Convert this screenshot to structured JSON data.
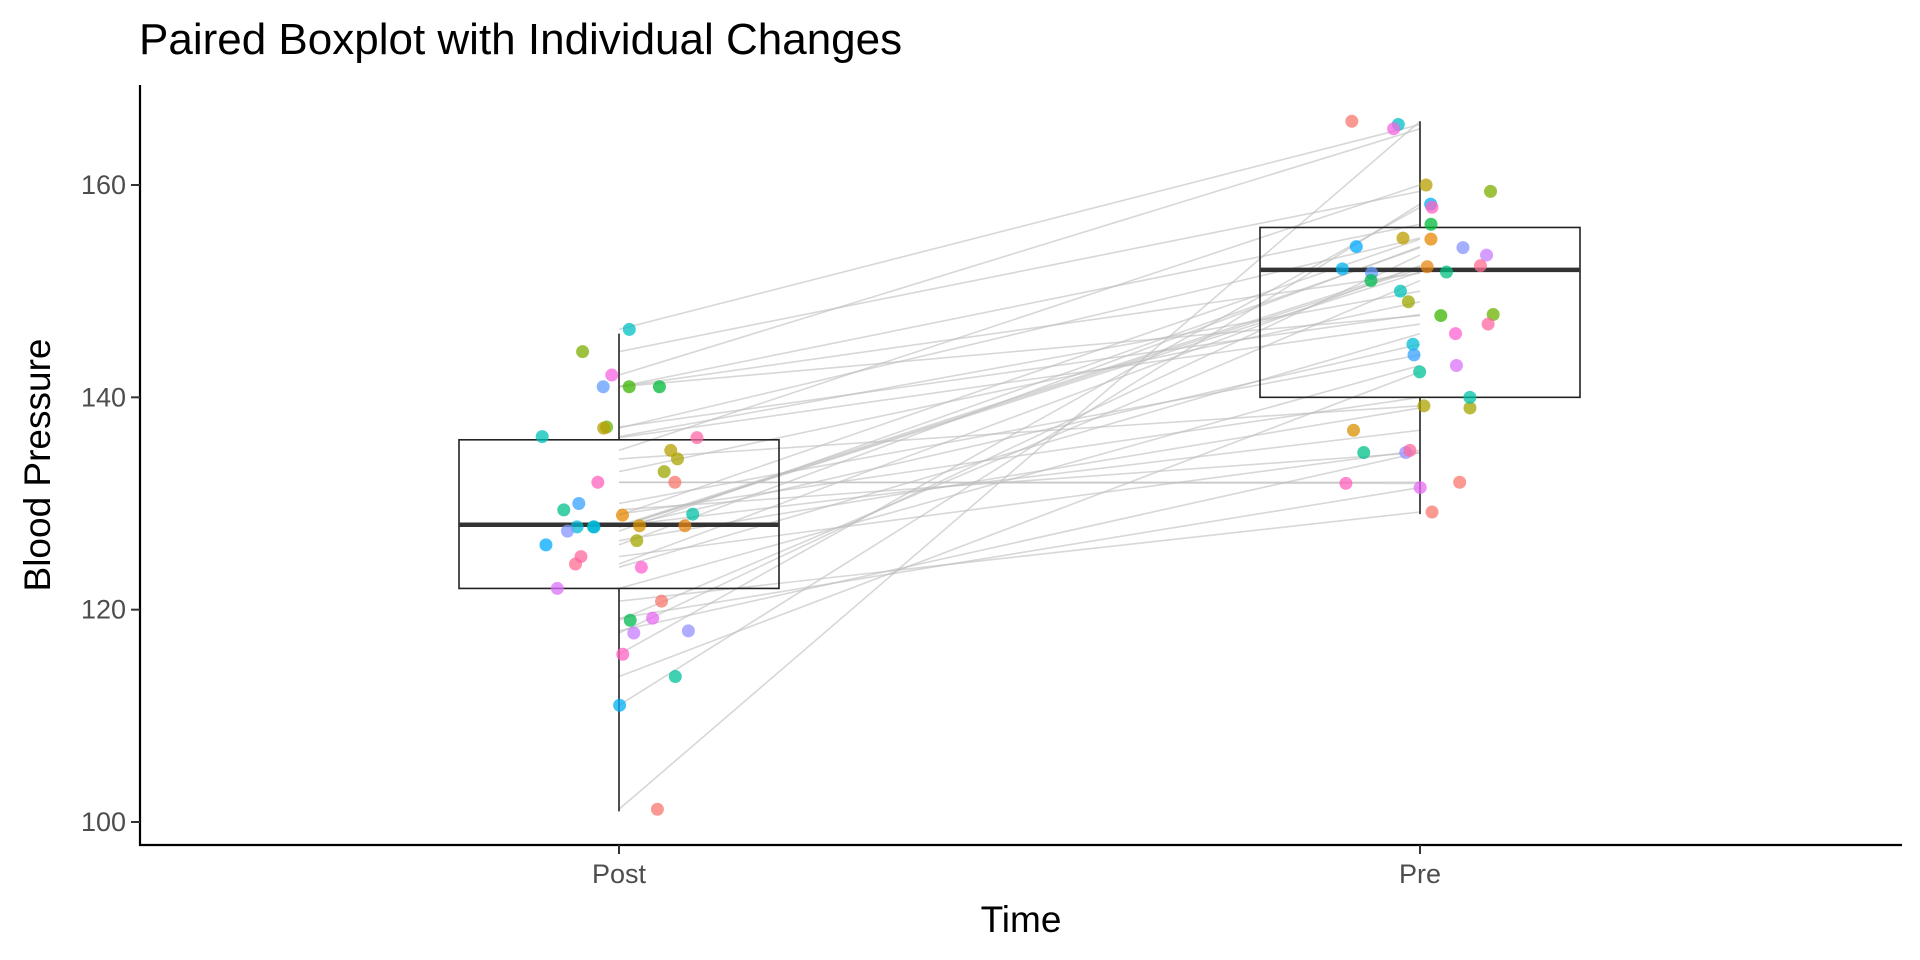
{
  "chart_data": {
    "type": "boxplot",
    "title": "Paired Boxplot with Individual Changes",
    "xlabel": "Time",
    "ylabel": "Blood Pressure",
    "categories": [
      "Post",
      "Pre"
    ],
    "ylim": [
      98,
      169
    ],
    "yticks": [
      100,
      120,
      140,
      160
    ],
    "grid": false,
    "legend": "none",
    "boxes": [
      {
        "category": "Post",
        "whisker_low": 101,
        "q1": 122,
        "median": 128,
        "q3": 136,
        "whisker_high": 146
      },
      {
        "category": "Pre",
        "whisker_low": 129,
        "q1": 140,
        "median": 152,
        "q3": 156,
        "whisker_high": 166
      }
    ],
    "pairs": [
      {
        "color": "#F8766D",
        "post": 101.2,
        "pre": 166.0
      },
      {
        "color": "#00BFC4",
        "post": 146.4,
        "pre": 165.7
      },
      {
        "color": "#F564E3",
        "post": 142.1,
        "pre": 165.3
      },
      {
        "color": "#7CAE00",
        "post": 144.3,
        "pre": 159.4
      },
      {
        "color": "#B79F00",
        "post": 135.0,
        "pre": 160.0
      },
      {
        "color": "#00BA38",
        "post": 141.0,
        "pre": 156.3
      },
      {
        "color": "#00B0F6",
        "post": 111.0,
        "pre": 158.2
      },
      {
        "color": "#FF61C3",
        "post": 115.8,
        "pre": 157.9
      },
      {
        "color": "#E58700",
        "post": 128.9,
        "pre": 154.9
      },
      {
        "color": "#00C0B8",
        "post": 136.3,
        "pre": 150.0
      },
      {
        "color": "#C77CFF",
        "post": 117.8,
        "pre": 153.4
      },
      {
        "color": "#A3A500",
        "post": 126.5,
        "pre": 139.0
      },
      {
        "color": "#619CFF",
        "post": 141.0,
        "pre": 151.7
      },
      {
        "color": "#F8766D",
        "post": 132.0,
        "pre": 132.0
      },
      {
        "color": "#00BF7D",
        "post": 127.8,
        "pre": 151.8
      },
      {
        "color": "#6BB100",
        "post": 137.2,
        "pre": 147.8
      },
      {
        "color": "#00BCD8",
        "post": 127.8,
        "pre": 145.0
      },
      {
        "color": "#FF67A4",
        "post": 136.2,
        "pre": 146.9
      },
      {
        "color": "#E76BF3",
        "post": 119.2,
        "pre": 131.5
      },
      {
        "color": "#ABA300",
        "post": 134.2,
        "pre": 139.2
      },
      {
        "color": "#00C19A",
        "post": 113.7,
        "pre": 142.4
      },
      {
        "color": "#00A9FF",
        "post": 126.1,
        "pre": 154.2
      },
      {
        "color": "#D89000",
        "post": 127.9,
        "pre": 136.9
      },
      {
        "color": "#9590FF",
        "post": 118.0,
        "pre": 134.8
      },
      {
        "color": "#FF6C91",
        "post": 124.3,
        "pre": 152.4
      },
      {
        "color": "#F8766D",
        "post": 120.8,
        "pre": 129.2
      },
      {
        "color": "#00C08B",
        "post": 129.4,
        "pre": 134.8
      },
      {
        "color": "#E68613",
        "post": 127.9,
        "pre": 152.3
      },
      {
        "color": "#8494FF",
        "post": 127.4,
        "pre": 154.1
      },
      {
        "color": "#00B4F0",
        "post": 127.8,
        "pre": 152.1
      },
      {
        "color": "#39B600",
        "post": 141.0,
        "pre": 147.7
      },
      {
        "color": "#FF62BC",
        "post": 132.0,
        "pre": 131.9
      },
      {
        "color": "#BB9D00",
        "post": 137.1,
        "pre": 155.0
      },
      {
        "color": "#00BB4E",
        "post": 119.0,
        "pre": 151.0
      },
      {
        "color": "#DB72FB",
        "post": 122.0,
        "pre": 143.0
      },
      {
        "color": "#FD61D1",
        "post": 124.0,
        "pre": 146.0
      },
      {
        "color": "#00C1A7",
        "post": 129.0,
        "pre": 140.0
      },
      {
        "color": "#35A2FF",
        "post": 130.0,
        "pre": 144.0
      },
      {
        "color": "#FF689F",
        "post": 125.0,
        "pre": 135.0
      },
      {
        "color": "#9CA700",
        "post": 133.0,
        "pre": 149.0
      }
    ]
  }
}
